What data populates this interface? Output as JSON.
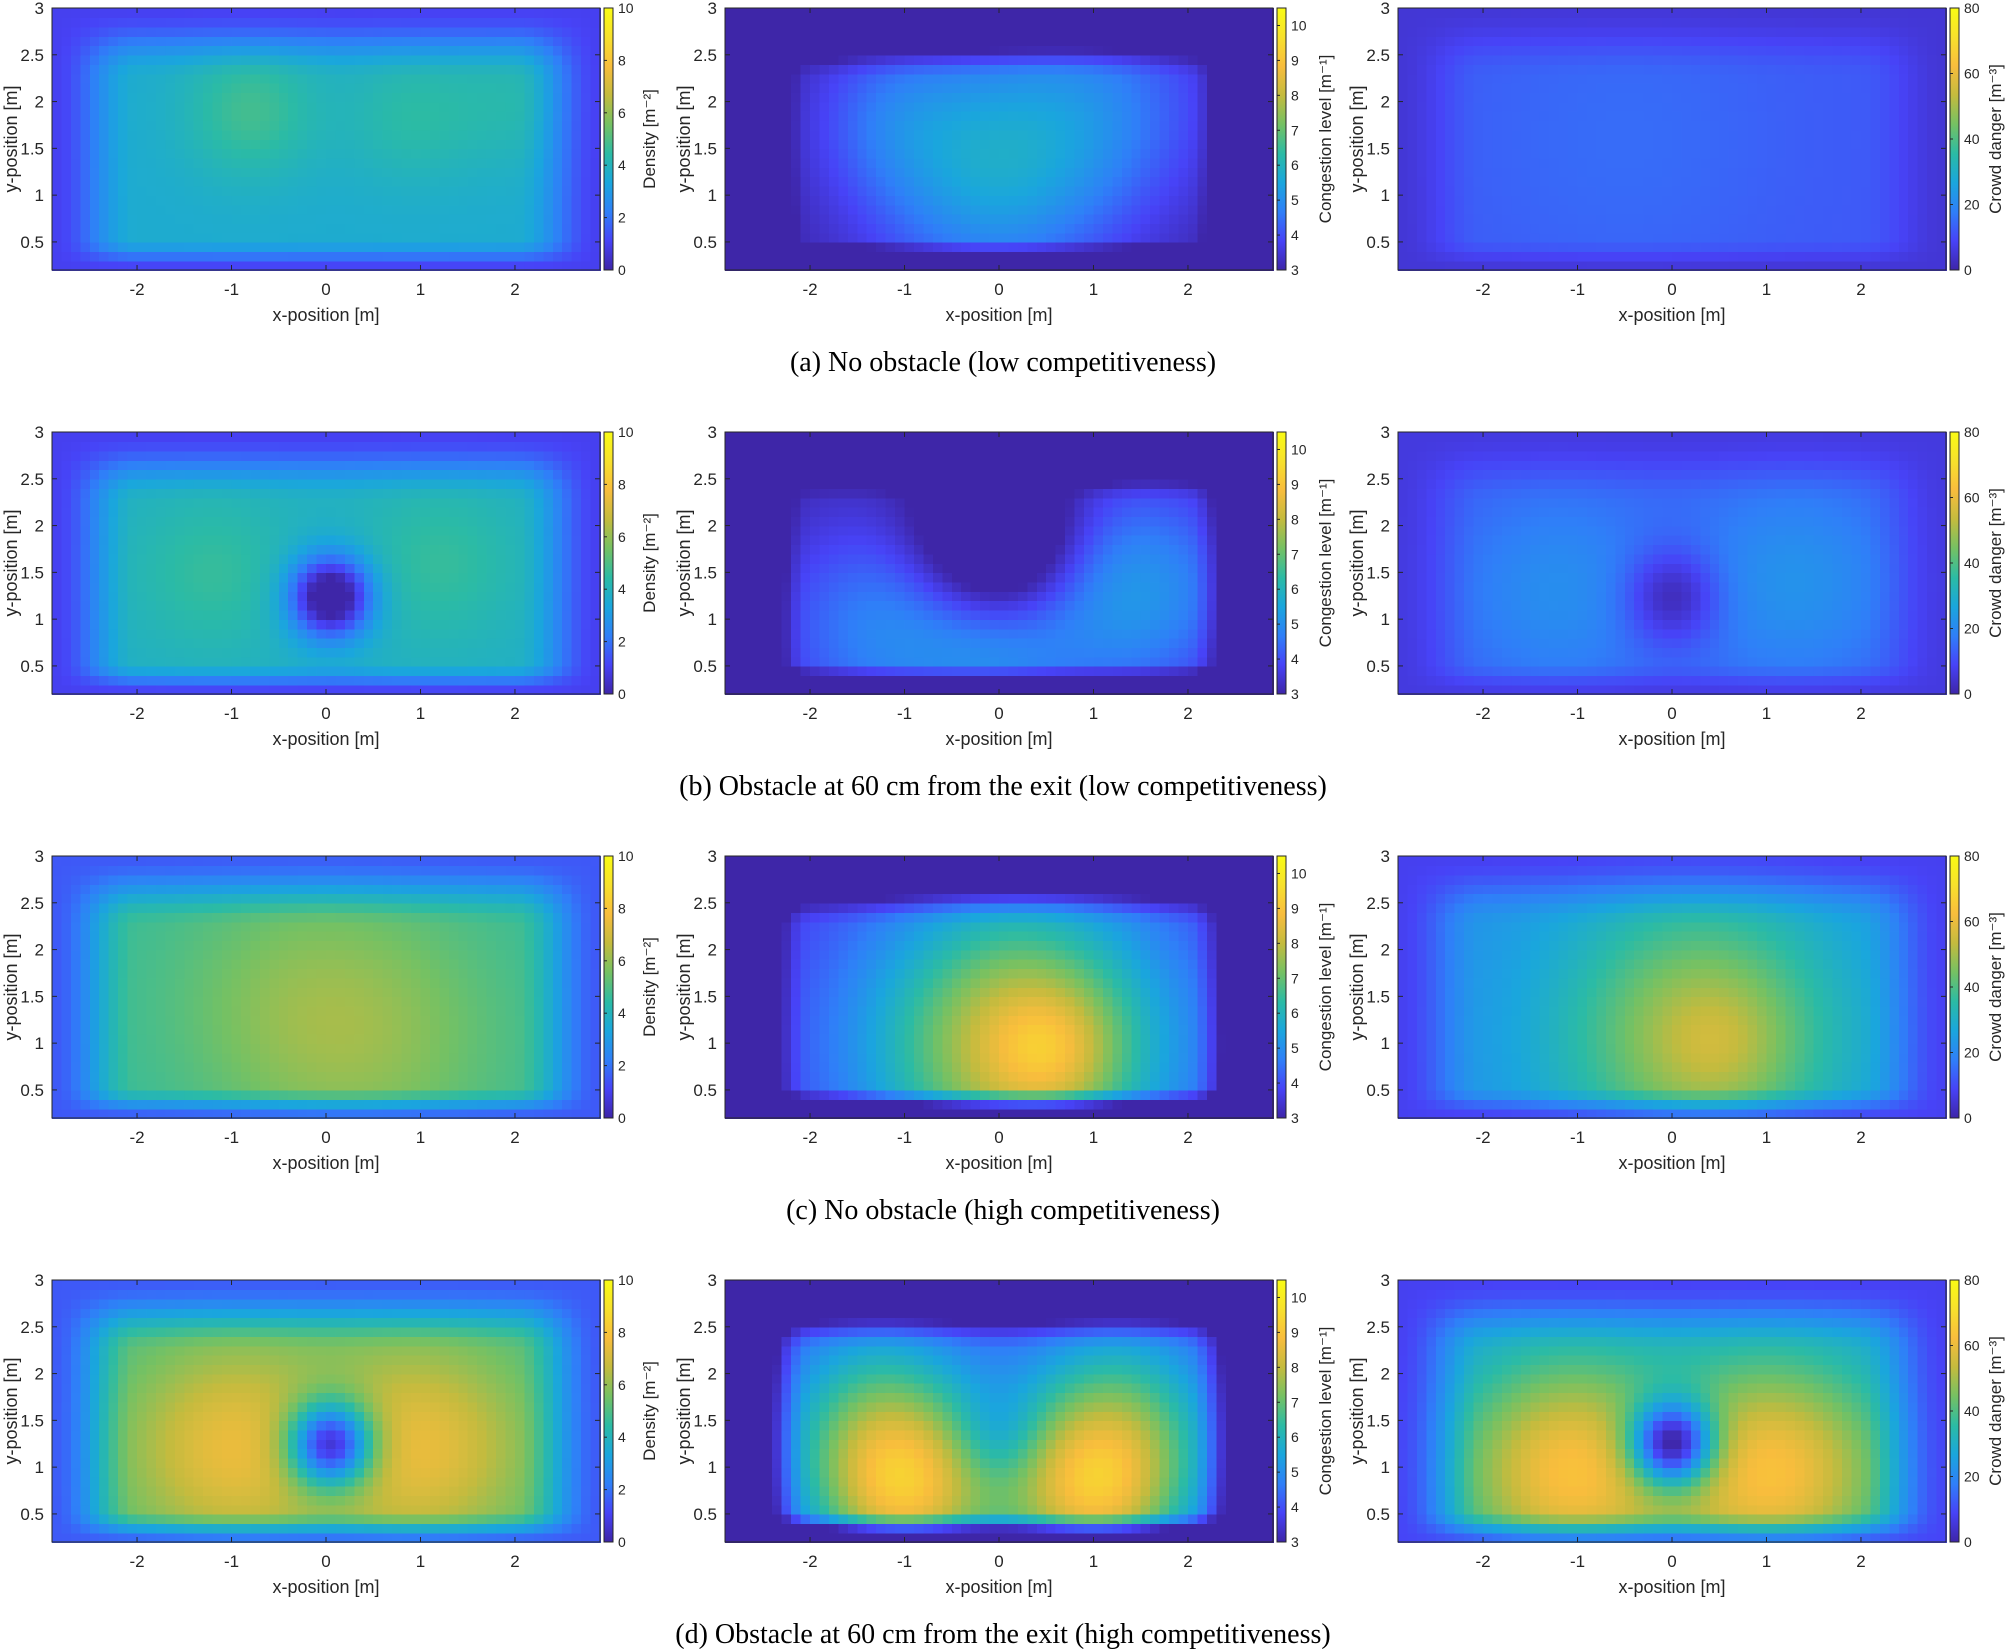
{
  "colormap": [
    "#3e26a8",
    "#4743f7",
    "#2f7ff8",
    "#1aa6dd",
    "#2bbba5",
    "#75c163",
    "#c4bb3e",
    "#f8bd3d",
    "#f7e12c",
    "#f9fb14"
  ],
  "panel_labels": {
    "xlabel": "x-position [m]",
    "ylabel": "y-position [m]",
    "x_ticks": [
      "-2",
      "-1",
      "0",
      "1",
      "2"
    ],
    "y_ticks": [
      "0.5",
      "1",
      "1.5",
      "2",
      "2.5",
      "3"
    ]
  },
  "captions": [
    "(a)  No obstacle (low competitiveness)",
    "(b)  Obstacle at 60 cm from the exit (low competitiveness)",
    "(c)  No obstacle (high competitiveness)",
    "(d)  Obstacle at 60 cm from the exit (high competitiveness)"
  ],
  "columns": [
    {
      "colorbar_label": "Density [m⁻²]",
      "colorbar_ticks": [
        "0",
        "2",
        "4",
        "6",
        "8",
        "10"
      ]
    },
    {
      "colorbar_label": "Congestion level [m⁻¹]",
      "colorbar_ticks": [
        "3",
        "4",
        "5",
        "6",
        "7",
        "8",
        "9",
        "10"
      ]
    },
    {
      "colorbar_label": "Crowd danger [m⁻³]",
      "colorbar_ticks": [
        "0",
        "20",
        "40",
        "60",
        "80"
      ]
    }
  ],
  "chart_data": [
    {
      "type": "heatmap",
      "row": "a",
      "metric": "Density",
      "xlabel": "x-position [m]",
      "ylabel": "y-position [m]",
      "xlim": [
        -2.9,
        2.9
      ],
      "ylim": [
        0.2,
        3
      ],
      "clim": [
        0,
        10
      ],
      "colorbar_label": "Density [m⁻²]",
      "field": {
        "base": 3.6,
        "edge": 1.0,
        "bumps": [
          {
            "x": -0.8,
            "y": 1.9,
            "a": 1.2,
            "s": 0.5
          },
          {
            "x": 0.9,
            "y": 1.85,
            "a": 0.8,
            "s": 0.5
          },
          {
            "x": 2.0,
            "y": 2.0,
            "a": 0.6,
            "s": 0.5
          }
        ]
      }
    },
    {
      "type": "heatmap",
      "row": "a",
      "metric": "Congestion level",
      "xlabel": "x-position [m]",
      "ylabel": "y-position [m]",
      "xlim": [
        -2.9,
        2.9
      ],
      "ylim": [
        0.2,
        3
      ],
      "clim": [
        3,
        10.5
      ],
      "colorbar_label": "Congestion level [m⁻¹]",
      "field": {
        "base": 3.0,
        "edge": 0.0,
        "bumps": [
          {
            "x": -0.1,
            "y": 1.3,
            "a": 2.4,
            "s": 0.95
          },
          {
            "x": 1.2,
            "y": 2.0,
            "a": 1.2,
            "s": 0.85
          },
          {
            "x": -1.2,
            "y": 1.9,
            "a": 0.8,
            "s": 0.6
          }
        ]
      }
    },
    {
      "type": "heatmap",
      "row": "a",
      "metric": "Crowd danger",
      "xlabel": "x-position [m]",
      "ylabel": "y-position [m]",
      "xlim": [
        -2.9,
        2.9
      ],
      "ylim": [
        0.2,
        3
      ],
      "clim": [
        0,
        80
      ],
      "colorbar_label": "Crowd danger [m⁻³]",
      "field": {
        "base": 12,
        "edge": 5,
        "bumps": [
          {
            "x": -0.5,
            "y": 1.6,
            "a": 3,
            "s": 1.2
          }
        ]
      }
    },
    {
      "type": "heatmap",
      "row": "b",
      "metric": "Density",
      "xlabel": "x-position [m]",
      "ylabel": "y-position [m]",
      "xlim": [
        -2.9,
        2.9
      ],
      "ylim": [
        0.2,
        3
      ],
      "clim": [
        0,
        10
      ],
      "colorbar_label": "Density [m⁻²]",
      "field": {
        "base": 3.8,
        "edge": 1.0,
        "bumps": [
          {
            "x": -1.2,
            "y": 1.5,
            "a": 0.8,
            "s": 0.6
          },
          {
            "x": 1.2,
            "y": 1.6,
            "a": 0.8,
            "s": 0.6
          },
          {
            "x": 0.05,
            "y": 1.25,
            "a": -5.0,
            "s": 0.3
          }
        ]
      }
    },
    {
      "type": "heatmap",
      "row": "b",
      "metric": "Congestion level",
      "xlabel": "x-position [m]",
      "ylabel": "y-position [m]",
      "xlim": [
        -2.9,
        2.9
      ],
      "ylim": [
        0.2,
        3
      ],
      "clim": [
        3,
        10.5
      ],
      "colorbar_label": "Congestion level [m⁻¹]",
      "field": {
        "base": 3.0,
        "edge": 0.0,
        "bumps": [
          {
            "x": -1.2,
            "y": 0.9,
            "a": 1.8,
            "s": 0.85
          },
          {
            "x": 1.4,
            "y": 1.3,
            "a": 2.2,
            "s": 0.85
          },
          {
            "x": 0.0,
            "y": 0.6,
            "a": 1.2,
            "s": 0.6
          },
          {
            "x": 0.0,
            "y": 1.8,
            "a": -2.5,
            "s": 0.6
          }
        ]
      }
    },
    {
      "type": "heatmap",
      "row": "b",
      "metric": "Crowd danger",
      "xlabel": "x-position [m]",
      "ylabel": "y-position [m]",
      "xlim": [
        -2.9,
        2.9
      ],
      "ylim": [
        0.2,
        3
      ],
      "clim": [
        0,
        80
      ],
      "colorbar_label": "Crowd danger [m⁻³]",
      "field": {
        "base": 12,
        "edge": 6,
        "bumps": [
          {
            "x": -1.2,
            "y": 1.3,
            "a": 9,
            "s": 0.8
          },
          {
            "x": 1.3,
            "y": 1.4,
            "a": 10,
            "s": 0.8
          },
          {
            "x": 0.0,
            "y": 1.25,
            "a": -15,
            "s": 0.35
          }
        ]
      }
    },
    {
      "type": "heatmap",
      "row": "c",
      "metric": "Density",
      "xlabel": "x-position [m]",
      "ylabel": "y-position [m]",
      "xlim": [
        -2.9,
        2.9
      ],
      "ylim": [
        0.2,
        3
      ],
      "clim": [
        0,
        10
      ],
      "colorbar_label": "Density [m⁻²]",
      "field": {
        "base": 4.6,
        "edge": 1.5,
        "bumps": [
          {
            "x": 0.4,
            "y": 1.1,
            "a": 1.3,
            "s": 1.0
          },
          {
            "x": -0.6,
            "y": 1.5,
            "a": 0.6,
            "s": 0.9
          }
        ]
      }
    },
    {
      "type": "heatmap",
      "row": "c",
      "metric": "Congestion level",
      "xlabel": "x-position [m]",
      "ylabel": "y-position [m]",
      "xlim": [
        -2.9,
        2.9
      ],
      "ylim": [
        0.2,
        3
      ],
      "clim": [
        3,
        10.5
      ],
      "colorbar_label": "Congestion level [m⁻¹]",
      "field": {
        "base": 3.6,
        "edge": 0.0,
        "bumps": [
          {
            "x": 0.2,
            "y": 1.0,
            "a": 4.6,
            "s": 1.15
          },
          {
            "x": 0.55,
            "y": 0.95,
            "a": 1.2,
            "s": 0.45
          }
        ]
      }
    },
    {
      "type": "heatmap",
      "row": "c",
      "metric": "Crowd danger",
      "xlabel": "x-position [m]",
      "ylabel": "y-position [m]",
      "xlim": [
        -2.9,
        2.9
      ],
      "ylim": [
        0.2,
        3
      ],
      "clim": [
        0,
        80
      ],
      "colorbar_label": "Crowd danger [m⁻³]",
      "field": {
        "base": 22,
        "edge": 8,
        "bumps": [
          {
            "x": 0.3,
            "y": 1.1,
            "a": 28,
            "s": 1.05
          },
          {
            "x": 0.5,
            "y": 1.0,
            "a": 6,
            "s": 0.45
          }
        ]
      }
    },
    {
      "type": "heatmap",
      "row": "d",
      "metric": "Density",
      "xlabel": "x-position [m]",
      "ylabel": "y-position [m]",
      "xlim": [
        -2.9,
        2.9
      ],
      "ylim": [
        0.2,
        3
      ],
      "clim": [
        0,
        10
      ],
      "colorbar_label": "Density [m⁻²]",
      "field": {
        "base": 4.8,
        "edge": 1.5,
        "bumps": [
          {
            "x": -1.0,
            "y": 1.2,
            "a": 2.6,
            "s": 0.8
          },
          {
            "x": 1.0,
            "y": 1.2,
            "a": 2.6,
            "s": 0.8
          },
          {
            "x": 0.05,
            "y": 1.25,
            "a": -6.5,
            "s": 0.32
          }
        ]
      }
    },
    {
      "type": "heatmap",
      "row": "d",
      "metric": "Congestion level",
      "xlabel": "x-position [m]",
      "ylabel": "y-position [m]",
      "xlim": [
        -2.9,
        2.9
      ],
      "ylim": [
        0.2,
        3
      ],
      "clim": [
        3,
        10.5
      ],
      "colorbar_label": "Congestion level [m⁻¹]",
      "field": {
        "base": 3.5,
        "edge": 0.0,
        "bumps": [
          {
            "x": -1.0,
            "y": 0.7,
            "a": 4.3,
            "s": 0.7
          },
          {
            "x": 1.0,
            "y": 0.7,
            "a": 4.3,
            "s": 0.7
          },
          {
            "x": -1.3,
            "y": 1.6,
            "a": 2.5,
            "s": 0.8
          },
          {
            "x": 1.3,
            "y": 1.6,
            "a": 2.5,
            "s": 0.8
          },
          {
            "x": 0.0,
            "y": 1.3,
            "a": -1.0,
            "s": 0.35
          }
        ]
      }
    },
    {
      "type": "heatmap",
      "row": "d",
      "metric": "Crowd danger",
      "xlabel": "x-position [m]",
      "ylabel": "y-position [m]",
      "xlim": [
        -2.9,
        2.9
      ],
      "ylim": [
        0.2,
        3
      ],
      "clim": [
        0,
        80
      ],
      "colorbar_label": "Crowd danger [m⁻³]",
      "field": {
        "base": 24,
        "edge": 8,
        "bumps": [
          {
            "x": -1.1,
            "y": 0.95,
            "a": 38,
            "s": 0.85
          },
          {
            "x": 1.1,
            "y": 0.95,
            "a": 38,
            "s": 0.85
          },
          {
            "x": 0.0,
            "y": 1.25,
            "a": -55,
            "s": 0.32
          }
        ]
      }
    }
  ]
}
